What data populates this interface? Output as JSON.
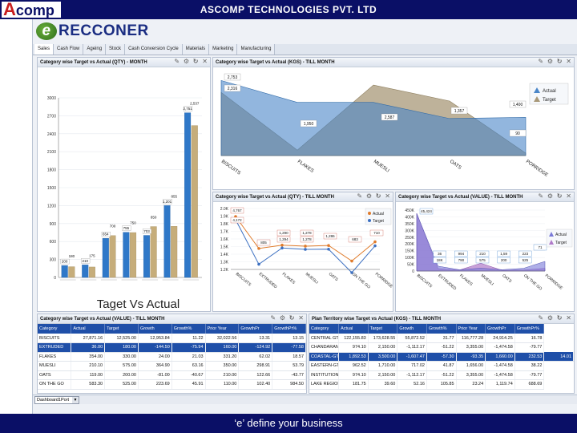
{
  "header": {
    "logo_a": "A",
    "logo_rest": "comp",
    "company": "ASCOMP TECHNOLOGIES PVT. LTD"
  },
  "app": {
    "brand_e": "e",
    "brand_rest": "RECCONER"
  },
  "tabs": [
    "Sales",
    "Cash Flow",
    "Ageing",
    "Stock",
    "Cash Conversion Cycle",
    "Materials",
    "Marketing",
    "Manufacturing"
  ],
  "panels": {
    "qty_month": {
      "title": "Category wise Target vs Actual (QTY) - MONTH",
      "caption": "Taget Vs Actual"
    },
    "kgs_till": {
      "title": "Category wise Target vs Actual (KGS) - TILL MONTH"
    },
    "qty_till": {
      "title": "Category wise Target vs Actual (QTY) - TILL MONTH"
    },
    "value_till": {
      "title": "Category wise Target vs Actual (VALUE) - TILL MONTH"
    },
    "value_till_table": {
      "title": "Category wise Target vs Actual (VALUE) - TILL MONTH"
    },
    "plan_territory": {
      "title": "Plan Territory wise Target vs Actual (KGS) - TILL MONTH"
    }
  },
  "panel_controls": "✎ ⚙ ↻ ✕",
  "legend": {
    "actual": "Actual",
    "target": "Target"
  },
  "colors": {
    "actual": "#2f78c8",
    "target": "#c6ad7a",
    "header_bg": "#0a0f66",
    "table_header": "#1f4fa8"
  },
  "chart_data": [
    {
      "type": "bar",
      "title": "Category wise Target vs Actual (QTY) - MONTH",
      "xlabel": "Taget Vs Actual",
      "yticks": [
        "0",
        "300",
        "600",
        "900",
        "1200",
        "1500",
        "1800",
        "2100",
        "2400",
        "2700",
        "3000"
      ],
      "ylim": [
        0,
        3000
      ],
      "series": [
        {
          "name": "Actual",
          "values": [
            200,
            210,
            654,
            755,
            703,
            1201,
            2751
          ]
        },
        {
          "name": "Target",
          "values": [
            180,
            175,
            700,
            750,
            850,
            855,
            2537
          ]
        }
      ],
      "data_labels": {
        "actual": [
          "200",
          "210",
          "654",
          "755",
          "703",
          "1,201",
          "2,751"
        ],
        "target": [
          "180",
          "175",
          "700",
          "750",
          "850",
          "855",
          "2,537"
        ]
      }
    },
    {
      "type": "area",
      "title": "Category wise Target vs Actual (KGS) - TILL MONTH",
      "categories": [
        "BISCUITS",
        "FLAKES",
        "MUESLI",
        "OATS",
        "PORRIDGE"
      ],
      "series": [
        {
          "name": "Actual",
          "values": [
            2753,
            1950,
            1950,
            1357,
            1400
          ]
        },
        {
          "name": "Target",
          "values": [
            2316,
            200,
            2587,
            2000,
            90
          ]
        }
      ],
      "data_labels": [
        "2,753",
        "2,316",
        "1,950",
        "2,587",
        "1,357",
        "1,400",
        "90"
      ]
    },
    {
      "type": "line",
      "title": "Category wise Target vs Actual (QTY) - TILL MONTH",
      "categories": [
        "BISCUITS",
        "EXTRUDED",
        "FLAKES",
        "MUESLI",
        "OATS",
        "ON THE GO",
        "PORRIDGE"
      ],
      "yticks": [
        "2.0K",
        "1.9K",
        "1.8K",
        "1.7K",
        "1.6K",
        "1.5K",
        "1.4K",
        "1.3K",
        "1.2K"
      ],
      "series": [
        {
          "name": "Actual",
          "values": [
            4767,
            1250,
            1290,
            1278,
            1286,
            1100,
            1330
          ]
        },
        {
          "name": "Target",
          "values": [
            4172,
            1100,
            1294,
            1278,
            1280,
            1000,
            1320
          ]
        }
      ],
      "data_labels": [
        "4,767",
        "4,172",
        "805",
        "1,290",
        "1,294",
        "1,278",
        "1,278",
        "1,286",
        "683",
        "710"
      ]
    },
    {
      "type": "area",
      "title": "Category wise Target vs Actual (VALUE) - TILL MONTH",
      "categories": [
        "BISCUITS",
        "EXTRUDED",
        "FLAKES",
        "MUESLI",
        "OATS",
        "ON THE GO",
        "PORRIDGE"
      ],
      "yticks": [
        "450K",
        "400K",
        "350K",
        "300K",
        "250K",
        "200K",
        "150K",
        "100K",
        "50K",
        "0"
      ],
      "ylim": [
        0,
        450000
      ],
      "series": [
        {
          "name": "Actual",
          "values": [
            425000,
            36000,
            9400,
            21000,
            10000,
            20000,
            71000
          ]
        },
        {
          "name": "Target",
          "values": [
            425000,
            18000,
            7500,
            57500,
            5000,
            8000,
            20000
          ]
        }
      ],
      "data_labels": [
        "45,424",
        "36",
        "994",
        "210",
        "1,59",
        "223",
        "71",
        "18K",
        "790",
        "575",
        "200",
        "525"
      ]
    }
  ],
  "table1": {
    "columns": [
      "Category",
      "Actual",
      "Target",
      "Growth",
      "Growth%",
      "Prior Year",
      "GrowthPr",
      "GrowthPr%"
    ],
    "rows": [
      [
        "BISCUITS",
        "27,871.16",
        "12,525.00",
        "12,953.84",
        "11.22",
        "32,022.56",
        "13.31",
        "13.15"
      ],
      [
        "EXTRUDED",
        "36.00",
        "180.00",
        "-144.50",
        "-75.94",
        "160.00",
        "-124.92",
        "-77.58"
      ],
      [
        "FLAKES",
        "354.00",
        "330.00",
        "24.00",
        "21.03",
        "331.20",
        "62.02",
        "18.57"
      ],
      [
        "MUESLI",
        "210.10",
        "575.00",
        "364.90",
        "63.16",
        "350.00",
        "298.91",
        "53.79"
      ],
      [
        "OATS",
        "119.00",
        "200.00",
        "-81.00",
        "-40.67",
        "210.00",
        "122.66",
        "-43.77"
      ],
      [
        "ON THE GO",
        "583.30",
        "525.00",
        "223.69",
        "45.91",
        "110.00",
        "102.40",
        "984.50"
      ]
    ]
  },
  "table2": {
    "columns": [
      "Category",
      "Actual",
      "Target",
      "Growth",
      "Growth%",
      "Prior Year",
      "GrowthPr",
      "GrowthPr%"
    ],
    "rows": [
      [
        "CENTRAL GT",
        "122,155.83",
        "173,628.55",
        "55,872.52",
        "31.77",
        "116,777.28",
        "24,914.25",
        "16.78"
      ],
      [
        "CHANDARANA-MT",
        "974.10",
        "2,150.00",
        "-1,112.17",
        "-51.22",
        "3,355.00",
        "-1,474.58",
        "-79.77"
      ],
      [
        "COASTAL-GT",
        "1,892.53",
        "3,500.00",
        "-1,607.47",
        "-57.30",
        "-93.35",
        "1,660.00",
        "232.53",
        "14.01"
      ],
      [
        "EASTERN-GT",
        "962.52",
        "1,710.00",
        "717.02",
        "41.87",
        "1,656.00",
        "-1,474.58",
        "38.22"
      ],
      [
        "INSTITUTIONS-ST",
        "974.10",
        "2,150.00",
        "-1,112.17",
        "-51.22",
        "3,355.00",
        "-1,474.58",
        "-79.77"
      ],
      [
        "LAKE REGION-ST",
        "181.75",
        "39.60",
        "52.16",
        "105.85",
        "23.24",
        "1,119.74",
        "688.69"
      ]
    ]
  },
  "dashboard_select": {
    "value": "Dashboard1Port"
  },
  "footer": {
    "tagline": "‘e’ define your business"
  }
}
